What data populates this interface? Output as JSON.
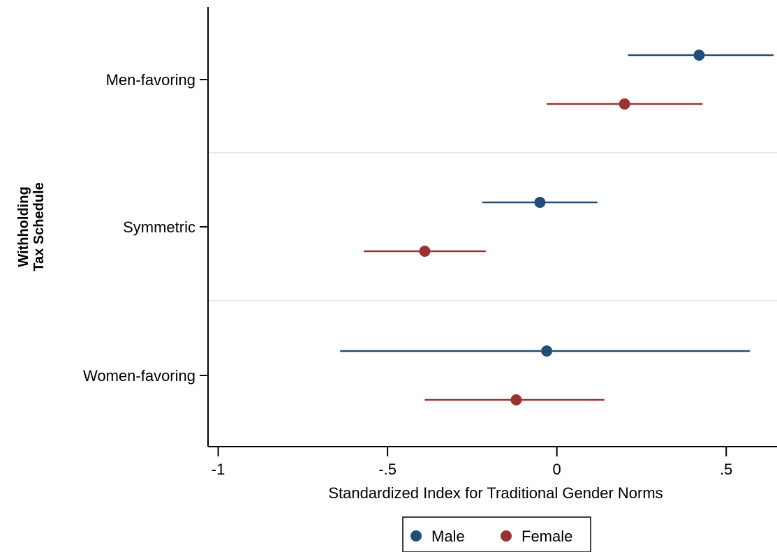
{
  "chart_data": {
    "type": "dot-whisker",
    "xlabel": "Standardized Index for Traditional Gender Norms",
    "ylabel_lines": [
      "Withholding",
      "Tax Schedule"
    ],
    "xlim": [
      -1.03,
      0.65
    ],
    "xticks": [
      {
        "value": -1,
        "label": "-1"
      },
      {
        "value": -0.5,
        "label": "-.5"
      },
      {
        "value": 0,
        "label": "0"
      },
      {
        "value": 0.5,
        "label": ".5"
      }
    ],
    "categories": [
      "Men-favoring",
      "Symmetric",
      "Women-favoring"
    ],
    "grid": "horizontal separators between categories",
    "legend_position": "bottom",
    "series": [
      {
        "name": "Male",
        "color": "#1f4e79",
        "estimates": [
          0.42,
          -0.05,
          -0.03
        ],
        "ci_low": [
          0.21,
          -0.22,
          -0.64
        ],
        "ci_high": [
          0.64,
          0.12,
          0.57
        ]
      },
      {
        "name": "Female",
        "color": "#993333",
        "estimates": [
          0.2,
          -0.39,
          -0.12
        ],
        "ci_low": [
          -0.03,
          -0.57,
          -0.39
        ],
        "ci_high": [
          0.43,
          -0.21,
          0.14
        ]
      }
    ]
  }
}
